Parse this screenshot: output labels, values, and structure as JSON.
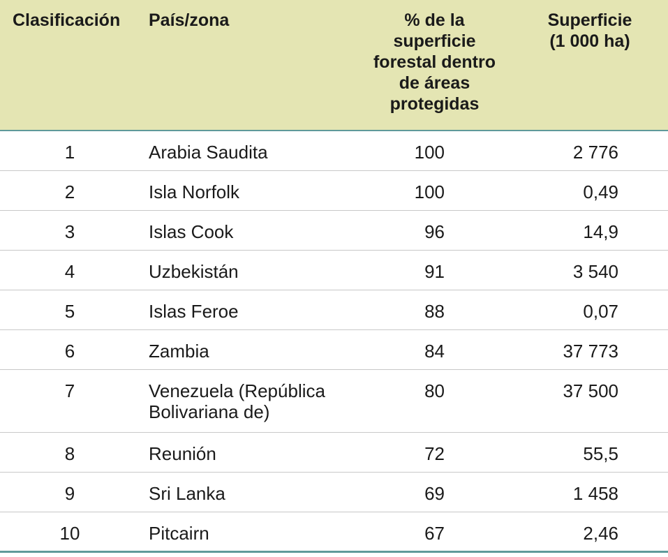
{
  "table": {
    "headers": {
      "rank": "Clasificación",
      "country": "País/zona",
      "pct_line1": "% de la",
      "pct_line2": "superficie",
      "pct_line3": "forestal dentro",
      "pct_line4": "de áreas",
      "pct_line5": "protegidas",
      "area_line1": "Superficie",
      "area_line2": "(1 000 ha)"
    },
    "rows": [
      {
        "rank": "1",
        "country": "Arabia Saudita",
        "country2": "",
        "pct": "100",
        "area": "2 776"
      },
      {
        "rank": "2",
        "country": "Isla Norfolk",
        "country2": "",
        "pct": "100",
        "area": "0,49"
      },
      {
        "rank": "3",
        "country": "Islas Cook",
        "country2": "",
        "pct": "96",
        "area": "14,9"
      },
      {
        "rank": "4",
        "country": "Uzbekistán",
        "country2": "",
        "pct": "91",
        "area": "3 540"
      },
      {
        "rank": "5",
        "country": "Islas Feroe",
        "country2": "",
        "pct": "88",
        "area": "0,07"
      },
      {
        "rank": "6",
        "country": "Zambia",
        "country2": "",
        "pct": "84",
        "area": "37 773"
      },
      {
        "rank": "7",
        "country": "Venezuela (República",
        "country2": "Bolivariana de)",
        "pct": "80",
        "area": "37 500"
      },
      {
        "rank": "8",
        "country": "Reunión",
        "country2": "",
        "pct": "72",
        "area": "55,5"
      },
      {
        "rank": "9",
        "country": "Sri Lanka",
        "country2": "",
        "pct": "69",
        "area": "1 458"
      },
      {
        "rank": "10",
        "country": "Pitcairn",
        "country2": "",
        "pct": "67",
        "area": "2,46"
      }
    ]
  },
  "colors": {
    "header_bg": "#e4e5b3",
    "rule": "#5f9a9a",
    "row_divider": "#c8c8c8"
  }
}
